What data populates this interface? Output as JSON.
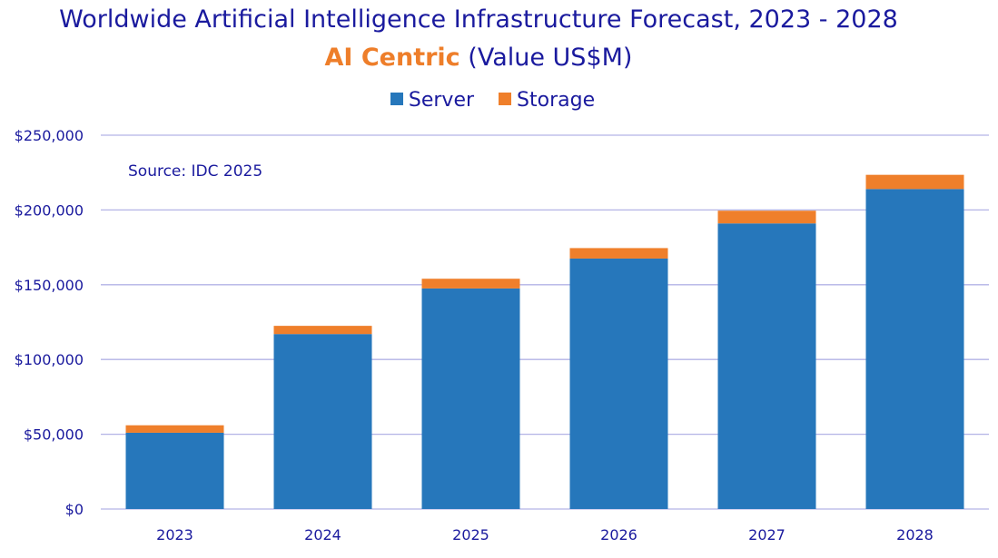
{
  "title": {
    "line1": "Worldwide Artificial Intelligence Infrastructure Forecast, 2023 - 2028",
    "accent": "AI Centric",
    "suffix": " (Value US$M)"
  },
  "note": "Source: IDC 2025",
  "colors": {
    "server": "#2677bb",
    "storage": "#ef7f2b",
    "grid": "#b3b3e6",
    "text": "#1a1a9e"
  },
  "chart_data": {
    "type": "bar",
    "stacked": true,
    "categories": [
      "2023",
      "2024",
      "2025",
      "2026",
      "2027",
      "2028"
    ],
    "series": [
      {
        "name": "Server",
        "values": [
          51000,
          117000,
          147500,
          167500,
          191000,
          214000
        ]
      },
      {
        "name": "Storage",
        "values": [
          5000,
          5500,
          6500,
          7000,
          8500,
          9500
        ]
      }
    ],
    "ylim": [
      0,
      250000
    ],
    "yticks": [
      0,
      50000,
      100000,
      150000,
      200000,
      250000
    ],
    "ytick_labels": [
      "$0",
      "$50,000",
      "$100,000",
      "$150,000",
      "$200,000",
      "$250,000"
    ],
    "legend_position": "top-center",
    "grid": true
  }
}
